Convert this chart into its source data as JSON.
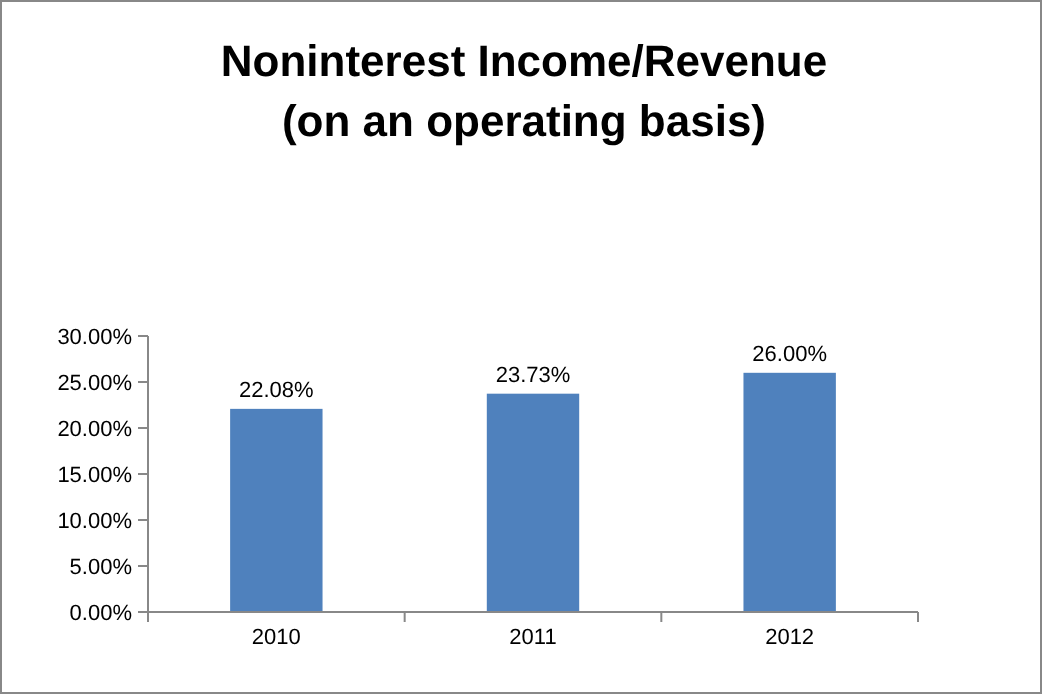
{
  "chart_data": {
    "type": "bar",
    "title": "Noninterest Income/Revenue\n(on an operating basis)",
    "categories": [
      "2010",
      "2011",
      "2012"
    ],
    "values": [
      22.08,
      23.73,
      26.0
    ],
    "value_labels": [
      "22.08%",
      "23.73%",
      "26.00%"
    ],
    "color": "#4f81bd",
    "ylim": [
      0,
      30
    ],
    "yticks": [
      {
        "value": 0,
        "label": "0.00%"
      },
      {
        "value": 5,
        "label": "5.00%"
      },
      {
        "value": 10,
        "label": "10.00%"
      },
      {
        "value": 15,
        "label": "15.00%"
      },
      {
        "value": 20,
        "label": "20.00%"
      },
      {
        "value": 25,
        "label": "25.00%"
      },
      {
        "value": 30,
        "label": "30.00%"
      }
    ],
    "grid": false
  }
}
